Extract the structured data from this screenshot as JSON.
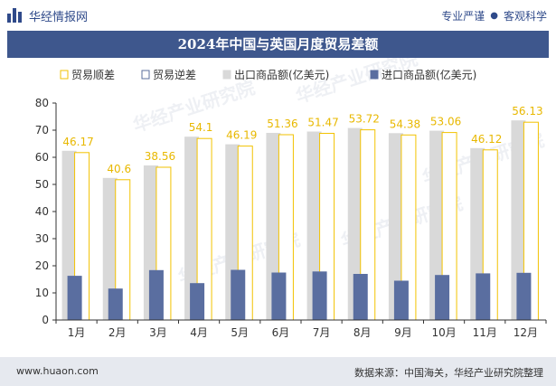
{
  "header": {
    "brand_name": "华经情报网",
    "slogan_left": "专业严谨",
    "slogan_dot": "●",
    "slogan_right": "客观科学"
  },
  "chart_data": {
    "type": "bar",
    "title": "2024年中国与英国月度贸易差额",
    "categories": [
      "1月",
      "2月",
      "3月",
      "4月",
      "5月",
      "6月",
      "7月",
      "8月",
      "9月",
      "10月",
      "11月",
      "12月"
    ],
    "series": [
      {
        "name": "贸易顺差",
        "values": [
          46.17,
          40.6,
          38.56,
          54.1,
          46.19,
          51.36,
          51.47,
          53.72,
          54.38,
          53.06,
          46.12,
          56.13
        ]
      },
      {
        "name": "贸易逆差",
        "values": [
          0,
          0,
          0,
          0,
          0,
          0,
          0,
          0,
          0,
          0,
          0,
          0
        ]
      },
      {
        "name": "出口商品额(亿美元)",
        "values": [
          62.4,
          52.4,
          57.0,
          67.6,
          64.8,
          69.0,
          69.5,
          70.8,
          68.9,
          69.8,
          63.4,
          73.6
        ]
      },
      {
        "name": "进口商品额(亿美元)",
        "values": [
          16.3,
          11.6,
          18.4,
          13.6,
          18.5,
          17.5,
          17.9,
          17.0,
          14.5,
          16.6,
          17.2,
          17.4
        ]
      }
    ],
    "data_labels": [
      "46.17",
      "40.6",
      "38.56",
      "54.1",
      "46.19",
      "51.36",
      "51.47",
      "53.72",
      "54.38",
      "53.06",
      "46.12",
      "56.13"
    ],
    "yticks": [
      "0",
      "10",
      "20",
      "30",
      "40",
      "50",
      "60",
      "70",
      "80"
    ],
    "ylim": [
      0,
      80
    ],
    "grid": false,
    "legend_position": "top",
    "colors": {
      "surplus": "#f2c200",
      "deficit": "#5b6f9e",
      "export": "#d9d9d9",
      "import": "#5a6ea0",
      "label": "#e8b800"
    }
  },
  "watermark": "华经产业研究院",
  "footer": {
    "url": "www.huaon.com",
    "source": "数据来源：中国海关，华经产业研究院整理"
  }
}
